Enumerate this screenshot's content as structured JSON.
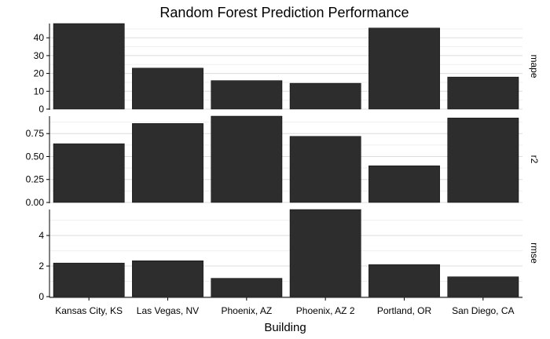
{
  "chart_data": {
    "type": "bar",
    "title": "Random Forest Prediction Performance",
    "xlabel": "Building",
    "categories": [
      "Kansas City, KS",
      "Las Vegas, NV",
      "Phoenix, AZ",
      "Phoenix, AZ 2",
      "Portland, OR",
      "San Diego, CA"
    ],
    "bar_color": "#2d2d2d",
    "grid": true,
    "facets": [
      {
        "name": "mape",
        "values": [
          48,
          23,
          16,
          14.5,
          45.5,
          18
        ],
        "ylim": [
          0,
          48
        ],
        "yticks": [
          0,
          10,
          20,
          30,
          40
        ],
        "ytick_labels": [
          "0",
          "10",
          "20",
          "30",
          "40"
        ]
      },
      {
        "name": "r2",
        "values": [
          0.64,
          0.86,
          0.94,
          0.72,
          0.4,
          0.92
        ],
        "ylim": [
          0,
          0.94
        ],
        "yticks": [
          0,
          0.25,
          0.5,
          0.75
        ],
        "ytick_labels": [
          "0.00",
          "0.25",
          "0.50",
          "0.75"
        ]
      },
      {
        "name": "rmse",
        "values": [
          2.2,
          2.35,
          1.2,
          5.7,
          2.1,
          1.3
        ],
        "ylim": [
          0,
          5.7
        ],
        "yticks": [
          0,
          2,
          4
        ],
        "ytick_labels": [
          "0",
          "2",
          "4"
        ]
      }
    ]
  }
}
